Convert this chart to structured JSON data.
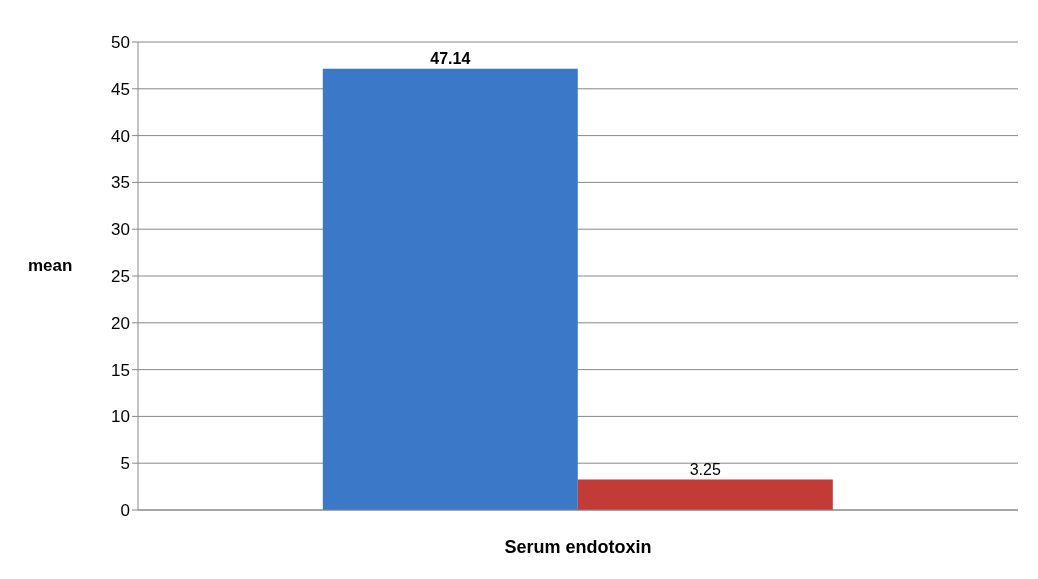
{
  "chart_data": {
    "type": "bar",
    "ylabel": "mean",
    "categories": [
      "Serum endotoxin"
    ],
    "series": [
      {
        "color": "#3b78c8",
        "values": [
          47.14
        ]
      },
      {
        "color": "#c23b36",
        "values": [
          3.25
        ]
      }
    ],
    "ylim": [
      0,
      50
    ],
    "yticks": [
      0,
      5,
      10,
      15,
      20,
      25,
      30,
      35,
      40,
      45,
      50
    ],
    "grid": "y",
    "data_labels": true,
    "legend": false
  }
}
